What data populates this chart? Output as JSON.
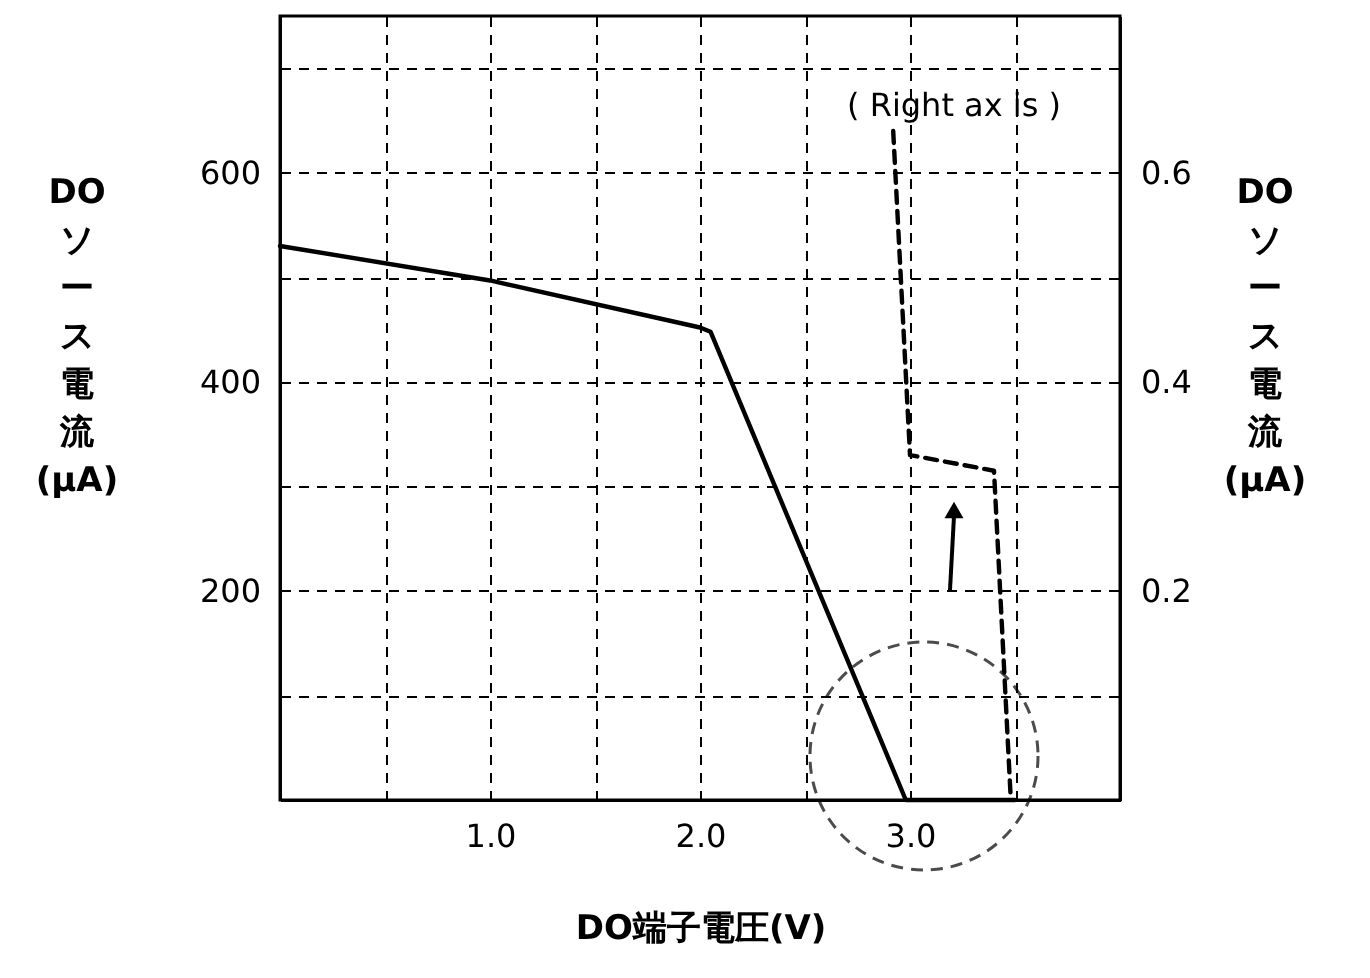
{
  "chart_data": {
    "type": "line",
    "xlabel": "DO端子電圧(V)",
    "ylabel": "DOソース電流(μA)",
    "y2label": "DOソース電流(μA)",
    "annotations": [
      "( Right ax is )"
    ],
    "xlim": [
      0,
      4
    ],
    "xticks": [
      {
        "value": 0.5,
        "label": null
      },
      {
        "value": 1,
        "label": "1.0"
      },
      {
        "value": 1.5,
        "label": null
      },
      {
        "value": 2,
        "label": "2.0"
      },
      {
        "value": 2.5,
        "label": null
      },
      {
        "value": 3,
        "label": "3.0"
      },
      {
        "value": 3.5,
        "label": null
      }
    ],
    "ylim": [
      0,
      750
    ],
    "yticks": [
      {
        "value": 100,
        "label": null
      },
      200,
      {
        "value": 300,
        "label": null
      },
      400,
      {
        "value": 500,
        "label": null
      },
      600,
      {
        "value": 700,
        "label": null
      }
    ],
    "y2lim": [
      0,
      0.75
    ],
    "y2ticks": [
      0.2,
      0.4,
      0.6
    ],
    "grid": true,
    "series": [
      {
        "color": "#000000",
        "line_style": "solid",
        "x": [
          0,
          1,
          2,
          2.05,
          2.98,
          3.5
        ],
        "values": [
          530,
          497,
          452,
          448,
          0,
          0
        ]
      },
      {
        "color": "#000000",
        "line_style": "dashed",
        "axis": "y2",
        "x": [
          2.92,
          3.0,
          3.4,
          3.48
        ],
        "values": [
          0.64,
          0.33,
          0.315,
          0.0
        ]
      }
    ]
  }
}
